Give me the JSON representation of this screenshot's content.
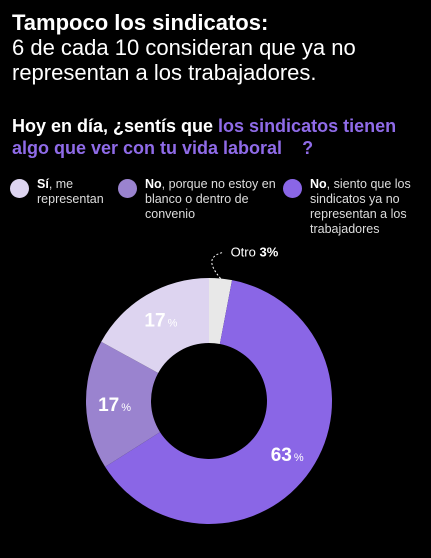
{
  "title": {
    "bold": "Tampoco los sindicatos:",
    "subtitle": "6 de cada 10 consideran que ya no representan a los trabajadores."
  },
  "question": {
    "prefix": "Hoy en día, ¿sentís que ",
    "highlight": "los sindicatos tienen algo que ver con tu vida laboral",
    "suffix": "?"
  },
  "legend": [
    {
      "bold": "Sí",
      "text": ", me representan",
      "color": "#ddd4f0"
    },
    {
      "bold": "No",
      "text": ", porque no estoy en blanco o dentro de convenio",
      "color": "#9a83cf"
    },
    {
      "bold": "No",
      "text": ", siento que los sindicatos ya no representan a los trabajadores",
      "color": "#8a66e6"
    }
  ],
  "chart_data": {
    "type": "pie",
    "categories": [
      "Otro",
      "No, siento que los sindicatos ya no representan a los trabajadores",
      "No, porque no estoy en blanco o dentro de convenio",
      "Sí, me representan"
    ],
    "values": [
      3,
      63,
      17,
      17
    ],
    "labels": [
      "3%",
      "63",
      "17",
      "17"
    ],
    "unit": "%",
    "colors": [
      "#e8e8e8",
      "#8a66e6",
      "#9a83cf",
      "#ddd4f0"
    ],
    "other_label": "Otro"
  }
}
